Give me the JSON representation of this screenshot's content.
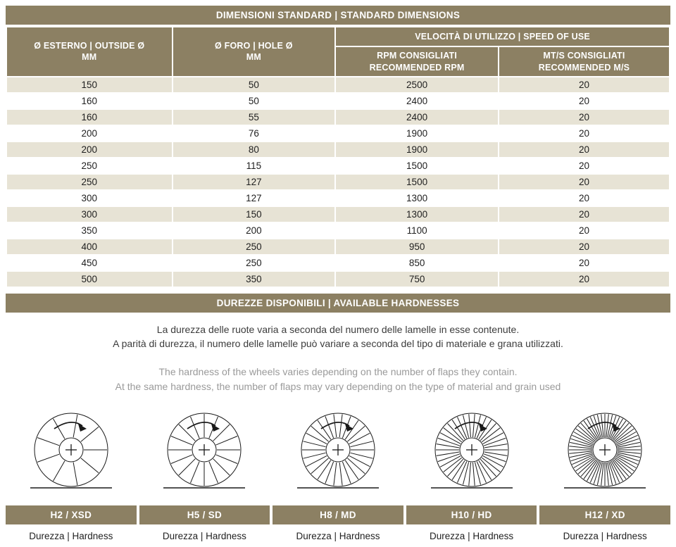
{
  "accent_color": "#8c8063",
  "row_alt_color": "#e7e3d5",
  "dimensions_table": {
    "title": "DIMENSIONI STANDARD | STANDARD DIMENSIONS",
    "col_outside": "Ø ESTERNO | OUTSIDE Ø\nMM",
    "col_hole": "Ø FORO | HOLE Ø\nMM",
    "col_speed_group": "VELOCITÀ DI UTILIZZO | SPEED OF USE",
    "col_rpm": "RPM CONSIGLIATI\nRECOMMENDED RPM",
    "col_mts": "MT/S CONSIGLIATI\nRECOMMENDED M/S",
    "rows": [
      [
        "150",
        "50",
        "2500",
        "20"
      ],
      [
        "160",
        "50",
        "2400",
        "20"
      ],
      [
        "160",
        "55",
        "2400",
        "20"
      ],
      [
        "200",
        "76",
        "1900",
        "20"
      ],
      [
        "200",
        "80",
        "1900",
        "20"
      ],
      [
        "250",
        "115",
        "1500",
        "20"
      ],
      [
        "250",
        "127",
        "1500",
        "20"
      ],
      [
        "300",
        "127",
        "1300",
        "20"
      ],
      [
        "300",
        "150",
        "1300",
        "20"
      ],
      [
        "350",
        "200",
        "1100",
        "20"
      ],
      [
        "400",
        "250",
        "950",
        "20"
      ],
      [
        "450",
        "250",
        "850",
        "20"
      ],
      [
        "500",
        "350",
        "750",
        "20"
      ]
    ]
  },
  "hardness_section": {
    "title": "DUREZZE DISPONIBILI | AVAILABLE HARDNESSES",
    "desc_it_1": "La durezza delle ruote varia a seconda del numero delle lamelle in esse contenute.",
    "desc_it_2": "A parità di durezza, il numero delle lamelle può variare a seconda del tipo di materiale e grana utilizzati.",
    "desc_en_1": "The hardness of the wheels varies depending on the number of flaps they contain.",
    "desc_en_2": "At the same hardness, the number of flaps may vary depending on the type of material and grain used",
    "wheels": [
      {
        "label": "H2 / XSD",
        "caption": "Durezza | Hardness",
        "flaps": 9
      },
      {
        "label": "H5 / SD",
        "caption": "Durezza | Hardness",
        "flaps": 16
      },
      {
        "label": "H8 / MD",
        "caption": "Durezza | Hardness",
        "flaps": 26
      },
      {
        "label": "H10 / HD",
        "caption": "Durezza | Hardness",
        "flaps": 38
      },
      {
        "label": "H12 / XD",
        "caption": "Durezza | Hardness",
        "flaps": 60
      }
    ]
  }
}
